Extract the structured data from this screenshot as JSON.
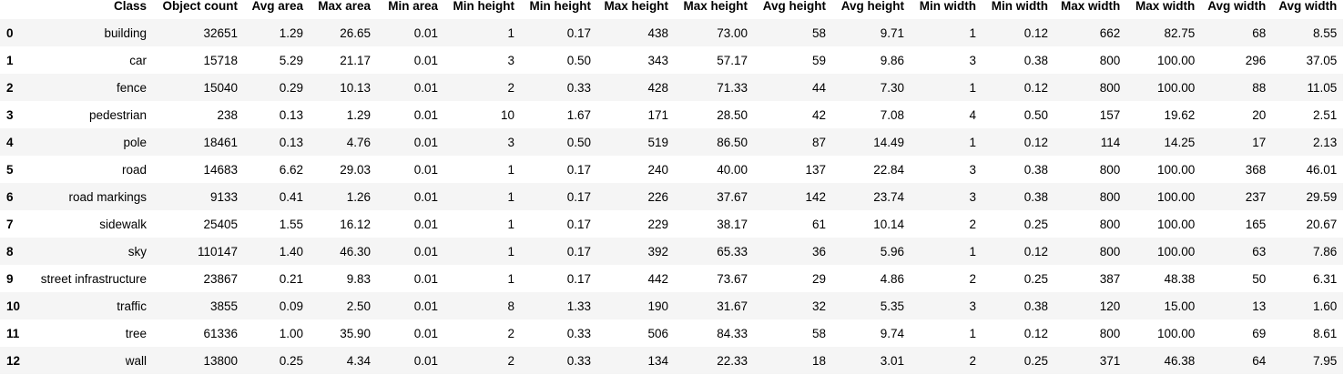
{
  "table": {
    "columns": [
      "",
      "Class",
      "Object count",
      "Avg area",
      "Max area",
      "Min area",
      "Min height",
      "Min height",
      "Max height",
      "Max height",
      "Avg height",
      "Avg height",
      "Min width",
      "Min width",
      "Max width",
      "Max width",
      "Avg width",
      "Avg width"
    ],
    "rows": [
      [
        "0",
        "building",
        "32651",
        "1.29",
        "26.65",
        "0.01",
        "1",
        "0.17",
        "438",
        "73.00",
        "58",
        "9.71",
        "1",
        "0.12",
        "662",
        "82.75",
        "68",
        "8.55"
      ],
      [
        "1",
        "car",
        "15718",
        "5.29",
        "21.17",
        "0.01",
        "3",
        "0.50",
        "343",
        "57.17",
        "59",
        "9.86",
        "3",
        "0.38",
        "800",
        "100.00",
        "296",
        "37.05"
      ],
      [
        "2",
        "fence",
        "15040",
        "0.29",
        "10.13",
        "0.01",
        "2",
        "0.33",
        "428",
        "71.33",
        "44",
        "7.30",
        "1",
        "0.12",
        "800",
        "100.00",
        "88",
        "11.05"
      ],
      [
        "3",
        "pedestrian",
        "238",
        "0.13",
        "1.29",
        "0.01",
        "10",
        "1.67",
        "171",
        "28.50",
        "42",
        "7.08",
        "4",
        "0.50",
        "157",
        "19.62",
        "20",
        "2.51"
      ],
      [
        "4",
        "pole",
        "18461",
        "0.13",
        "4.76",
        "0.01",
        "3",
        "0.50",
        "519",
        "86.50",
        "87",
        "14.49",
        "1",
        "0.12",
        "114",
        "14.25",
        "17",
        "2.13"
      ],
      [
        "5",
        "road",
        "14683",
        "6.62",
        "29.03",
        "0.01",
        "1",
        "0.17",
        "240",
        "40.00",
        "137",
        "22.84",
        "3",
        "0.38",
        "800",
        "100.00",
        "368",
        "46.01"
      ],
      [
        "6",
        "road markings",
        "9133",
        "0.41",
        "1.26",
        "0.01",
        "1",
        "0.17",
        "226",
        "37.67",
        "142",
        "23.74",
        "3",
        "0.38",
        "800",
        "100.00",
        "237",
        "29.59"
      ],
      [
        "7",
        "sidewalk",
        "25405",
        "1.55",
        "16.12",
        "0.01",
        "1",
        "0.17",
        "229",
        "38.17",
        "61",
        "10.14",
        "2",
        "0.25",
        "800",
        "100.00",
        "165",
        "20.67"
      ],
      [
        "8",
        "sky",
        "110147",
        "1.40",
        "46.30",
        "0.01",
        "1",
        "0.17",
        "392",
        "65.33",
        "36",
        "5.96",
        "1",
        "0.12",
        "800",
        "100.00",
        "63",
        "7.86"
      ],
      [
        "9",
        "street infrastructure",
        "23867",
        "0.21",
        "9.83",
        "0.01",
        "1",
        "0.17",
        "442",
        "73.67",
        "29",
        "4.86",
        "2",
        "0.25",
        "387",
        "48.38",
        "50",
        "6.31"
      ],
      [
        "10",
        "traffic",
        "3855",
        "0.09",
        "2.50",
        "0.01",
        "8",
        "1.33",
        "190",
        "31.67",
        "32",
        "5.35",
        "3",
        "0.38",
        "120",
        "15.00",
        "13",
        "1.60"
      ],
      [
        "11",
        "tree",
        "61336",
        "1.00",
        "35.90",
        "0.01",
        "2",
        "0.33",
        "506",
        "84.33",
        "58",
        "9.74",
        "1",
        "0.12",
        "800",
        "100.00",
        "69",
        "8.61"
      ],
      [
        "12",
        "wall",
        "13800",
        "0.25",
        "4.34",
        "0.01",
        "2",
        "0.33",
        "134",
        "22.33",
        "18",
        "3.01",
        "2",
        "0.25",
        "371",
        "46.38",
        "64",
        "7.95"
      ]
    ]
  }
}
